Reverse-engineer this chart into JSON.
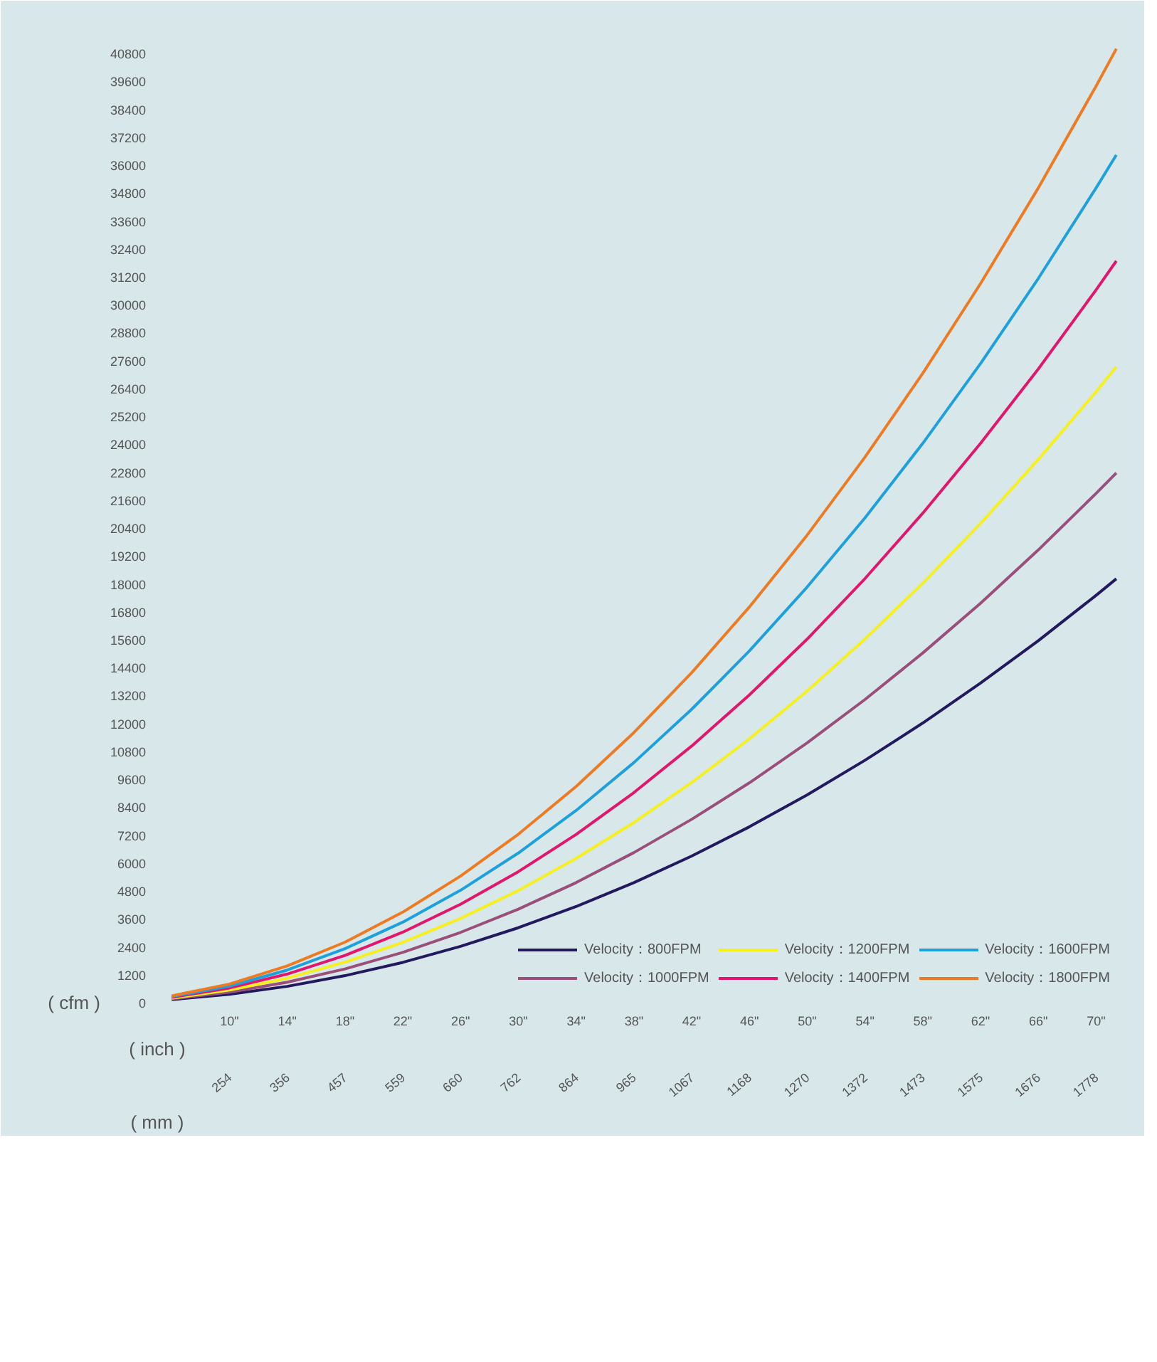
{
  "chart_data": {
    "type": "line",
    "xlabel": "( inch )",
    "x2label": "( mm )",
    "ylabel": "( cfm )",
    "x": [
      6,
      10,
      14,
      18,
      22,
      26,
      30,
      34,
      38,
      42,
      46,
      50,
      54,
      58,
      62,
      66,
      70,
      71.4
    ],
    "series": [
      {
        "name": "Velocity：800FPM",
        "color": "#23195e",
        "values": [
          130,
          360,
          700,
          1160,
          1730,
          2420,
          3220,
          4130,
          5160,
          6300,
          7560,
          8930,
          10420,
          12020,
          13740,
          15560,
          17510,
          18220
        ]
      },
      {
        "name": "Velocity：1000FPM",
        "color": "#9a4f7a",
        "values": [
          160,
          450,
          880,
          1450,
          2160,
          3020,
          4020,
          5160,
          6450,
          7880,
          9450,
          11170,
          13030,
          15030,
          17170,
          19460,
          21890,
          22770
        ]
      },
      {
        "name": "Velocity：1200FPM",
        "color": "#f5f01e",
        "values": [
          190,
          540,
          1050,
          1740,
          2590,
          3620,
          4820,
          6200,
          7740,
          9460,
          11340,
          13400,
          15630,
          18030,
          20600,
          23350,
          26260,
          27330
        ]
      },
      {
        "name": "Velocity：1400FPM",
        "color": "#e3166e",
        "values": [
          230,
          630,
          1230,
          2030,
          3030,
          4230,
          5630,
          7230,
          9030,
          11030,
          13230,
          15630,
          18230,
          21040,
          24040,
          27240,
          30640,
          31880
        ]
      },
      {
        "name": "Velocity：1600FPM",
        "color": "#1ea0dc",
        "values": [
          260,
          710,
          1400,
          2320,
          3460,
          4830,
          6430,
          8260,
          10320,
          12610,
          15120,
          17870,
          20840,
          24040,
          27470,
          31130,
          35020,
          36440
        ]
      },
      {
        "name": "Velocity：1800FPM",
        "color": "#ee7a22",
        "values": [
          290,
          800,
          1580,
          2600,
          3890,
          5440,
          7240,
          9290,
          11610,
          14180,
          17010,
          20100,
          23450,
          27050,
          30910,
          35020,
          39400,
          41000
        ]
      }
    ],
    "xlim": [
      5,
      72
    ],
    "ylim": [
      0,
      41600
    ],
    "xticks": [
      {
        "value": 10,
        "label": "10\""
      },
      {
        "value": 14,
        "label": "14\""
      },
      {
        "value": 18,
        "label": "18\""
      },
      {
        "value": 22,
        "label": "22\""
      },
      {
        "value": 26,
        "label": "26\""
      },
      {
        "value": 30,
        "label": "30\""
      },
      {
        "value": 34,
        "label": "34\""
      },
      {
        "value": 38,
        "label": "38\""
      },
      {
        "value": 42,
        "label": "42\""
      },
      {
        "value": 46,
        "label": "46\""
      },
      {
        "value": 50,
        "label": "50\""
      },
      {
        "value": 54,
        "label": "54\""
      },
      {
        "value": 58,
        "label": "58\""
      },
      {
        "value": 62,
        "label": "62\""
      },
      {
        "value": 66,
        "label": "66\""
      },
      {
        "value": 70,
        "label": "70\""
      }
    ],
    "x2lim": [
      127,
      1828.8
    ],
    "x2ticks": [
      254,
      356,
      457,
      559,
      660,
      762,
      864,
      965,
      1067,
      1168,
      1270,
      1372,
      1473,
      1575,
      1676,
      1778
    ],
    "yticks": [
      0,
      1200,
      2400,
      3600,
      4800,
      6000,
      7200,
      8400,
      9600,
      10800,
      12000,
      13200,
      14400,
      15600,
      16800,
      18000,
      19200,
      20400,
      21600,
      22800,
      24000,
      25200,
      26400,
      27600,
      28800,
      30000,
      31200,
      32400,
      33600,
      34800,
      36000,
      37200,
      38400,
      39600,
      40800
    ],
    "grid": false,
    "legend": "bottom right",
    "marker": "none",
    "line_style": "solid"
  }
}
